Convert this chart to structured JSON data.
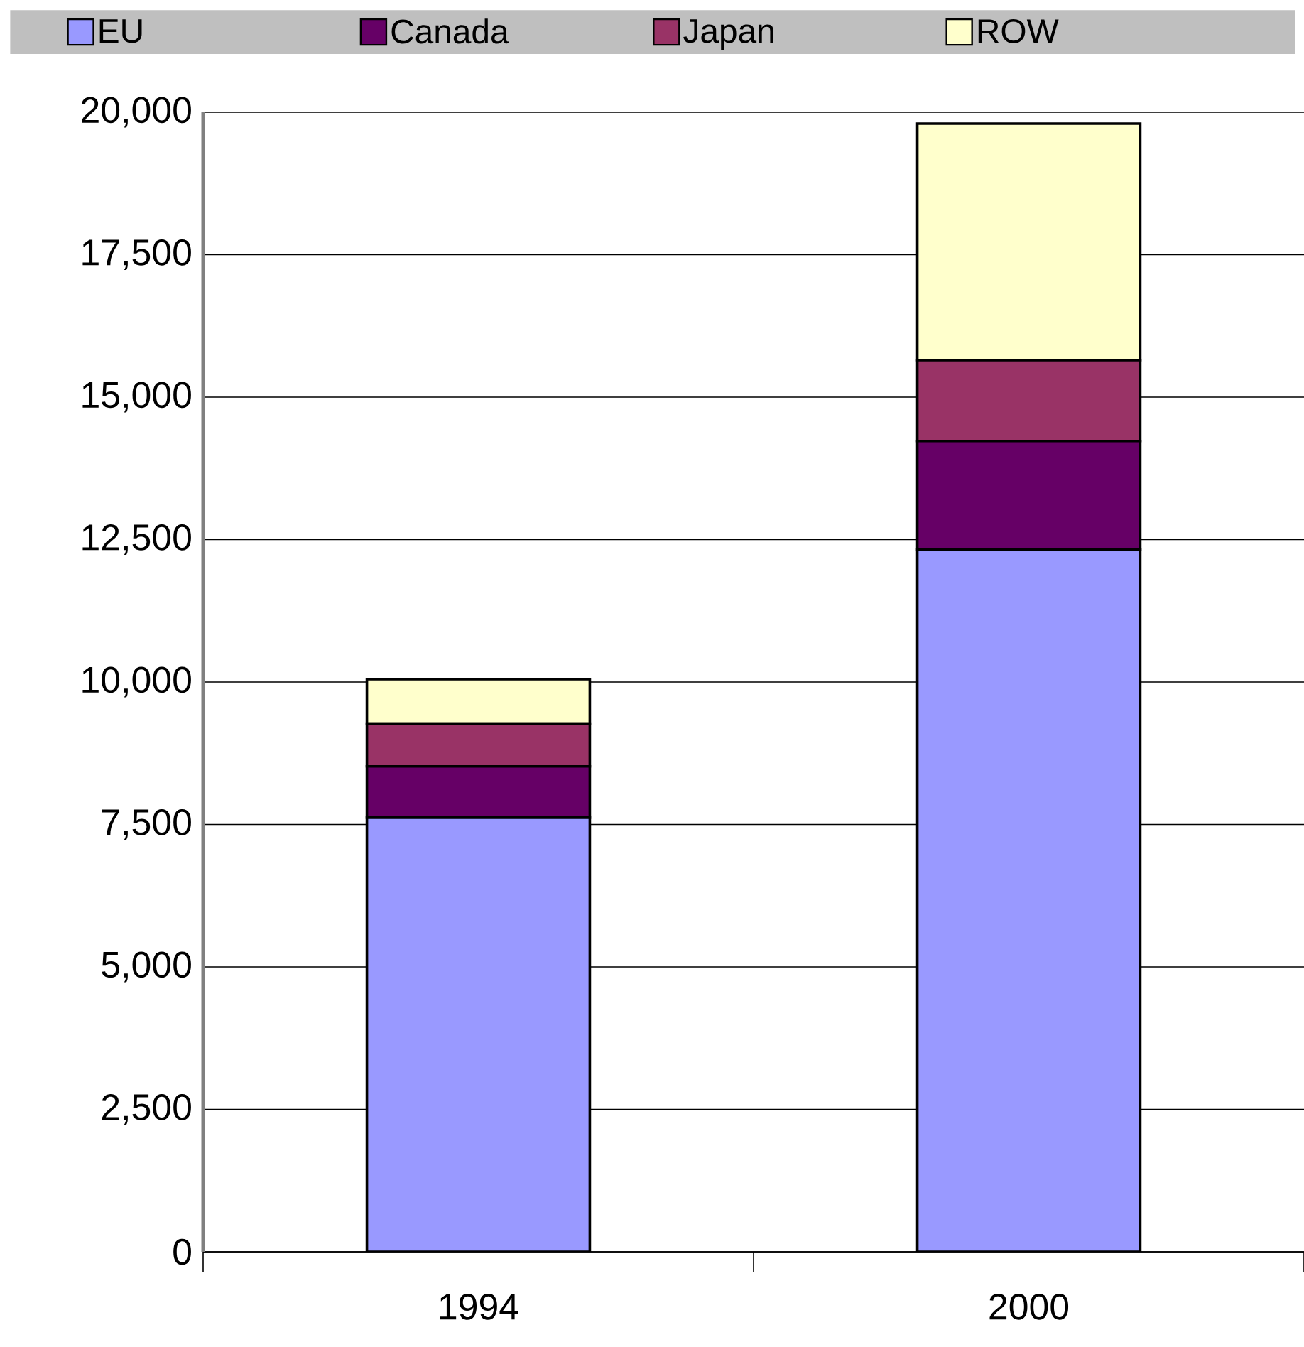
{
  "chart_data": {
    "type": "bar",
    "stacked": true,
    "categories": [
      "1994",
      "2000"
    ],
    "series": [
      {
        "name": "EU",
        "color": "#9999ff",
        "values": [
          7620,
          12330
        ]
      },
      {
        "name": "Canada",
        "color": "#660066",
        "values": [
          900,
          1900
        ]
      },
      {
        "name": "Japan",
        "color": "#993366",
        "values": [
          750,
          1420
        ]
      },
      {
        "name": "ROW",
        "color": "#ffffcc",
        "values": [
          780,
          4150
        ]
      }
    ],
    "ylim": [
      0,
      20000
    ],
    "yticks": [
      {
        "value": 0,
        "label": "0"
      },
      {
        "value": 2500,
        "label": "2,500"
      },
      {
        "value": 5000,
        "label": "5,000"
      },
      {
        "value": 7500,
        "label": "7,500"
      },
      {
        "value": 10000,
        "label": "10,000"
      },
      {
        "value": 12500,
        "label": "12,500"
      },
      {
        "value": 15000,
        "label": "15,000"
      },
      {
        "value": 17500,
        "label": "17,500"
      },
      {
        "value": 20000,
        "label": "20,000"
      }
    ],
    "grid": "y",
    "legend": "top"
  }
}
